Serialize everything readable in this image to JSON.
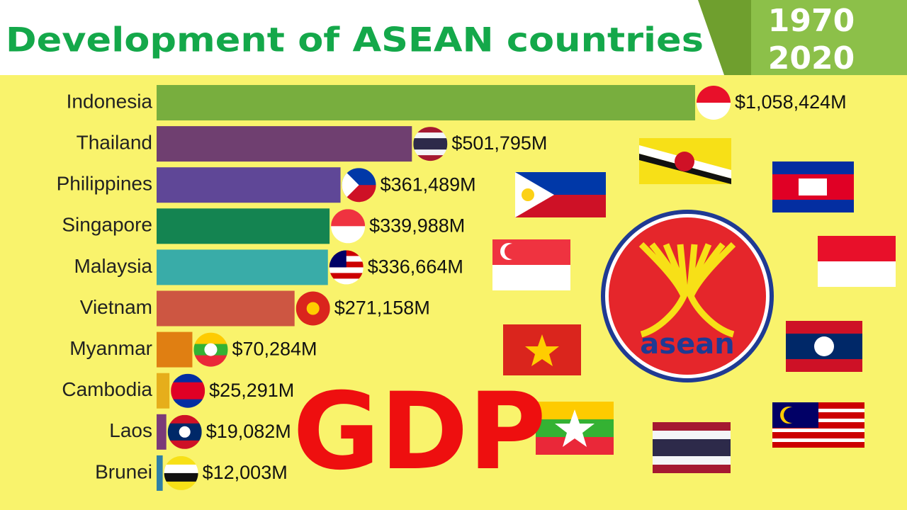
{
  "chart_data": {
    "type": "bar",
    "orientation": "horizontal",
    "title": "Development of ASEAN countries",
    "years": [
      "1970",
      "2020"
    ],
    "annotation": "GDP",
    "logo_text": "asean",
    "categories": [
      "Indonesia",
      "Thailand",
      "Philippines",
      "Singapore",
      "Malaysia",
      "Vietnam",
      "Myanmar",
      "Cambodia",
      "Laos",
      "Brunei"
    ],
    "values": [
      1058424,
      501795,
      361489,
      339988,
      336664,
      271158,
      70284,
      25291,
      19082,
      12003
    ],
    "value_labels": [
      "$1,058,424M",
      "$501,795M",
      "$361,489M",
      "$339,988M",
      "$336,664M",
      "$271,158M",
      "$70,284M",
      "$25,291M",
      "$19,082M",
      "$12,003M"
    ],
    "colors": [
      "#78ae3e",
      "#6f3f70",
      "#5f4797",
      "#148451",
      "#39aca8",
      "#cd5642",
      "#e07f12",
      "#e6ae1b",
      "#7b3b78",
      "#2f80a6"
    ]
  }
}
